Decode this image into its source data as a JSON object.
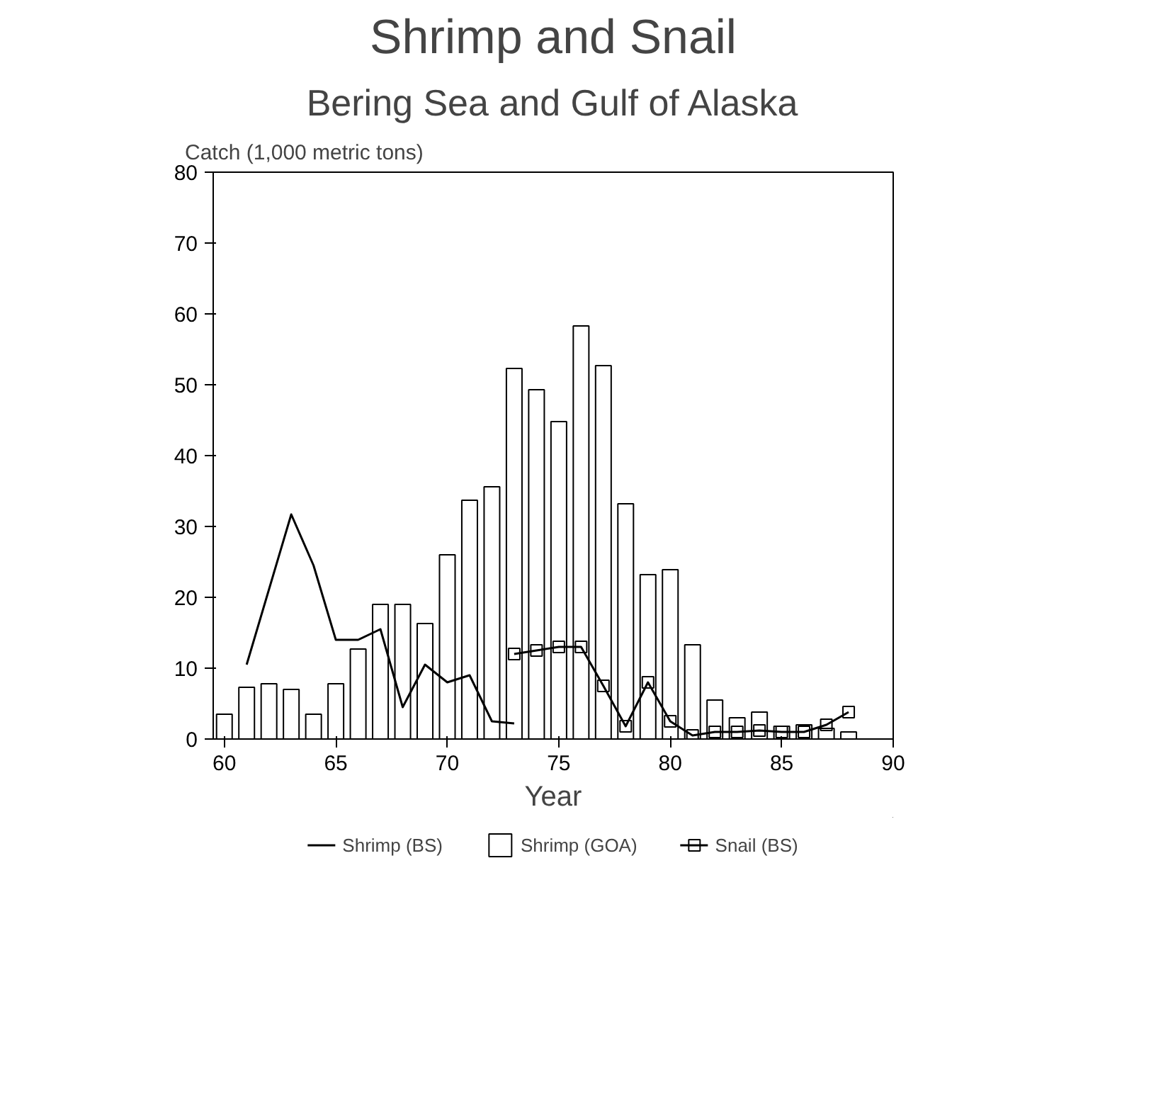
{
  "chart_data": {
    "type": "bar",
    "title": "Shrimp and Snail",
    "subtitle": "Bering Sea and Gulf of Alaska",
    "xlabel": "Year",
    "ylabel": "Catch (1,000 metric tons)",
    "xlim": [
      59.5,
      90
    ],
    "ylim": [
      0,
      80
    ],
    "xticks": [
      60,
      65,
      70,
      75,
      80,
      85,
      90
    ],
    "yticks": [
      0,
      10,
      20,
      30,
      40,
      50,
      60,
      70,
      80
    ],
    "grid": false,
    "legend": "bottom",
    "series": [
      {
        "name": "Shrimp (BS)",
        "type": "line",
        "color": "#000000",
        "marker": "none",
        "x": [
          61,
          63,
          64,
          65,
          66,
          67,
          68,
          69,
          70,
          71,
          72,
          73
        ],
        "values": [
          10.5,
          31.7,
          24.5,
          14,
          14,
          15.5,
          4.5,
          10.5,
          8,
          9,
          2.5,
          2.2
        ]
      },
      {
        "name": "Shrimp (GOA)",
        "color": "#ffffff",
        "x": [
          60,
          61,
          62,
          63,
          64,
          65,
          66,
          67,
          68,
          69,
          70,
          71,
          72,
          73,
          74,
          75,
          76,
          77,
          78,
          79,
          80,
          81,
          82,
          83,
          84,
          85,
          86,
          87,
          88
        ],
        "values": [
          3.5,
          7.3,
          7.8,
          7,
          3.5,
          7.8,
          12.7,
          19,
          19,
          16.3,
          26,
          33.7,
          35.6,
          52.3,
          49.3,
          44.8,
          58.3,
          52.7,
          33.2,
          23.2,
          23.9,
          13.3,
          5.5,
          3,
          3.8,
          1.8,
          2,
          1.5,
          1
        ]
      },
      {
        "name": "Snail (BS)",
        "type": "line",
        "color": "#000000",
        "marker": "square",
        "x": [
          73,
          74,
          75,
          76,
          77,
          78,
          79,
          80,
          81,
          82,
          83,
          84,
          85,
          86,
          87,
          88
        ],
        "values": [
          12,
          12.5,
          13,
          13,
          7.5,
          1.8,
          8,
          2.5,
          0.5,
          1,
          1,
          1.2,
          1,
          1,
          2,
          3.8
        ]
      }
    ]
  }
}
